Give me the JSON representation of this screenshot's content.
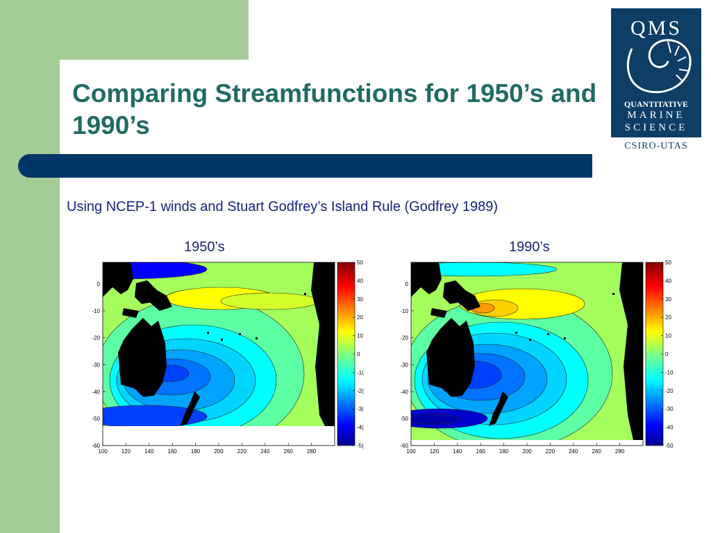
{
  "slide": {
    "title": "Comparing Streamfunctions for 1950’s and 1990’s",
    "subtitle": "Using NCEP-1 winds and Stuart Godfrey’s Island Rule (Godfrey 1989)",
    "colors": {
      "title": "#1f6b63",
      "bar": "#003767",
      "green": "#a3cc96",
      "text": "#17227c"
    }
  },
  "logo": {
    "top": "QMS",
    "line1": "QUANTITATIVE",
    "line2": "MARINE",
    "line3": "SCIENCE",
    "bottom": "CSIRO-UTAS"
  },
  "chart_data": [
    {
      "type": "heatmap",
      "title": "1950’s",
      "x_ticks": [
        100,
        120,
        140,
        160,
        180,
        200,
        220,
        240,
        260,
        280
      ],
      "y_ticks": [
        0,
        -10,
        -20,
        -30,
        -40,
        -50,
        -60
      ],
      "colorbar_ticks": [
        "50",
        "40",
        "30",
        "20",
        "10",
        "0",
        "-1(",
        "-2(",
        "-3(",
        "-4(",
        "-5("
      ],
      "colorbar_range": [
        -50,
        50
      ],
      "colormap": "jet"
    },
    {
      "type": "heatmap",
      "title": "1990’s",
      "x_ticks": [
        100,
        120,
        140,
        160,
        180,
        200,
        220,
        240,
        260,
        280
      ],
      "y_ticks": [
        0,
        -10,
        -20,
        -30,
        -40,
        -50,
        -60
      ],
      "colorbar_ticks": [
        "50",
        "40",
        "30",
        "20",
        "10",
        "0",
        "-10",
        "-20",
        "-30",
        "-40",
        "-50"
      ],
      "colorbar_range": [
        -50,
        50
      ],
      "colormap": "jet"
    }
  ]
}
